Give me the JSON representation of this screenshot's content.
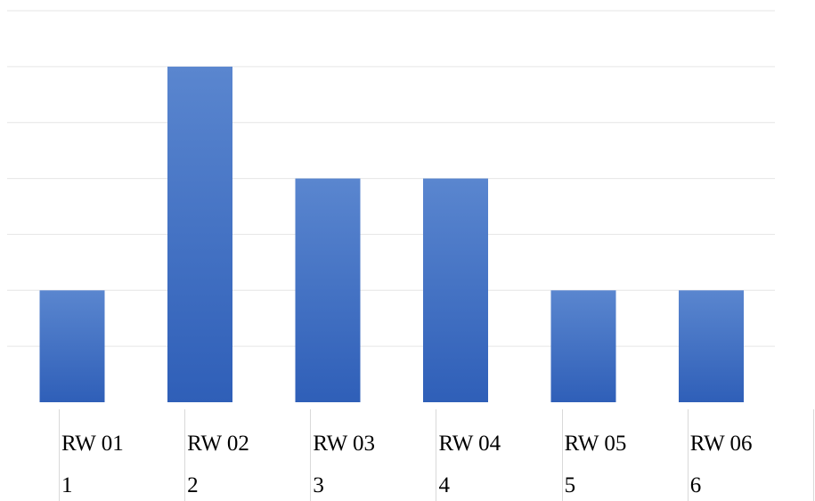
{
  "chart_data": {
    "type": "bar",
    "categories": [
      "RW 01",
      "RW 02",
      "RW 03",
      "RW 04",
      "RW 05",
      "RW 06"
    ],
    "category_codes": [
      "1",
      "2",
      "3",
      "4",
      "5",
      "6"
    ],
    "values": [
      2,
      6,
      4,
      4,
      2,
      2
    ],
    "ylim": [
      0,
      7
    ],
    "grid": true,
    "legend": "none",
    "title": "",
    "xlabel": "",
    "ylabel": "",
    "bar_color_top": "#5a86cf",
    "bar_color_bottom": "#2f5fb8",
    "grid_color": "#e6e6e6"
  }
}
